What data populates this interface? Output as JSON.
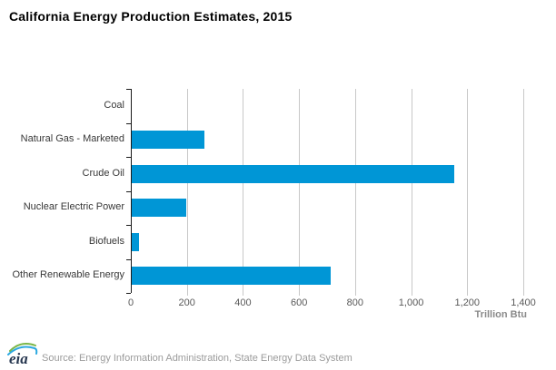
{
  "title": "California Energy Production Estimates, 2015",
  "chart_data": {
    "type": "bar",
    "orientation": "horizontal",
    "title": "California Energy Production Estimates, 2015",
    "categories": [
      "Coal",
      "Natural Gas - Marketed",
      "Crude Oil",
      "Nuclear Electric Power",
      "Biofuels",
      "Other Renewable Energy"
    ],
    "values": [
      0,
      260,
      1150,
      195,
      27,
      710
    ],
    "xlabel": "Trillion Btu",
    "ylabel": "",
    "xlim": [
      0,
      1400
    ],
    "xticks": [
      0,
      200,
      400,
      600,
      800,
      1000,
      1200,
      1400
    ],
    "xtick_labels": [
      "0",
      "200",
      "400",
      "600",
      "800",
      "1,000",
      "1,200",
      "1,400"
    ],
    "grid": true,
    "legend": "none",
    "bar_color": "#0096D6"
  },
  "colors": {
    "bar": "#0096D6",
    "gridline": "#c8c8c8",
    "axis": "#1a1a1a",
    "tick_label": "#595959",
    "category_label": "#383838",
    "unit_label": "#8a8a8a",
    "source_text": "#9b9b9b",
    "logo_text": "#26364f",
    "logo_swoosh_green": "#7ab648",
    "logo_swoosh_blue": "#2ba8e0"
  },
  "footer": {
    "logo_text": "eia",
    "source": "Source: Energy Information Administration, State Energy Data System"
  }
}
